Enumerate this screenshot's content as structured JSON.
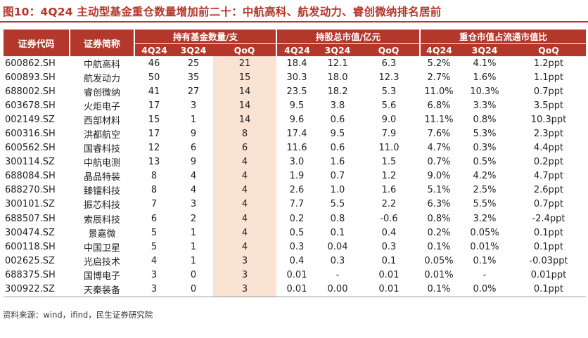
{
  "title": "图10：4Q24 主动型基金重仓数量增加前二十：中航高科、航发动力、睿创微纳排名居前",
  "source": "资料来源：wind，ifind，民生证券研究院",
  "colors": {
    "header_bg": "#b3372a",
    "highlight_bg": "#fbe3d3",
    "title_color": "#b3372a"
  },
  "header": {
    "code": "证券代码",
    "name": "证券简称",
    "group_holders": "持有基金数量/支",
    "group_mktcap": "持股总市值/亿元",
    "group_ratio": "重仓市值占流通市值比",
    "sub": [
      "4Q24",
      "3Q24",
      "QoQ",
      "4Q24",
      "3Q24",
      "QoQ",
      "4Q24",
      "3Q24",
      "QoQ"
    ]
  },
  "rows": [
    [
      "600862.SH",
      "中航高科",
      "46",
      "25",
      "21",
      "18.4",
      "12.1",
      "6.3",
      "5.2%",
      "4.1%",
      "1.2ppt"
    ],
    [
      "600893.SH",
      "航发动力",
      "50",
      "35",
      "15",
      "30.3",
      "18.0",
      "12.3",
      "2.7%",
      "1.6%",
      "1.1ppt"
    ],
    [
      "688002.SH",
      "睿创微纳",
      "41",
      "27",
      "14",
      "23.5",
      "18.2",
      "5.3",
      "11.0%",
      "10.3%",
      "0.7ppt"
    ],
    [
      "603678.SH",
      "火炬电子",
      "17",
      "3",
      "14",
      "9.5",
      "3.8",
      "5.6",
      "6.8%",
      "3.3%",
      "3.5ppt"
    ],
    [
      "002149.SZ",
      "西部材料",
      "15",
      "1",
      "14",
      "9.6",
      "0.6",
      "9.0",
      "11.1%",
      "0.8%",
      "10.3ppt"
    ],
    [
      "600316.SH",
      "洪都航空",
      "17",
      "9",
      "8",
      "17.4",
      "9.5",
      "7.9",
      "7.6%",
      "5.3%",
      "2.3ppt"
    ],
    [
      "600562.SH",
      "国睿科技",
      "12",
      "6",
      "6",
      "11.6",
      "0.6",
      "11.0",
      "4.7%",
      "0.3%",
      "4.4ppt"
    ],
    [
      "300114.SZ",
      "中航电测",
      "13",
      "9",
      "4",
      "3.0",
      "1.6",
      "1.5",
      "0.7%",
      "0.5%",
      "0.2ppt"
    ],
    [
      "688084.SH",
      "晶品特装",
      "8",
      "4",
      "4",
      "1.9",
      "0.7",
      "1.2",
      "9.0%",
      "4.2%",
      "4.7ppt"
    ],
    [
      "688270.SH",
      "臻镭科技",
      "8",
      "4",
      "4",
      "2.6",
      "1.0",
      "1.6",
      "5.1%",
      "2.5%",
      "2.6ppt"
    ],
    [
      "300101.SZ",
      "振芯科技",
      "7",
      "3",
      "4",
      "7.7",
      "5.5",
      "2.2",
      "6.3%",
      "5.5%",
      "0.7ppt"
    ],
    [
      "688507.SH",
      "索辰科技",
      "6",
      "2",
      "4",
      "0.2",
      "0.8",
      "-0.6",
      "0.8%",
      "3.2%",
      "-2.4ppt"
    ],
    [
      "300474.SZ",
      "景嘉微",
      "5",
      "1",
      "4",
      "0.5",
      "0.1",
      "0.4",
      "0.2%",
      "0.05%",
      "0.1ppt"
    ],
    [
      "600118.SH",
      "中国卫星",
      "5",
      "1",
      "4",
      "0.3",
      "0.04",
      "0.3",
      "0.1%",
      "0.01%",
      "0.1ppt"
    ],
    [
      "002625.SZ",
      "光启技术",
      "4",
      "1",
      "3",
      "0.4",
      "0.3",
      "0.1",
      "0.05%",
      "0.1%",
      "-0.03ppt"
    ],
    [
      "688375.SH",
      "国博电子",
      "3",
      "0",
      "3",
      "0.01",
      "-",
      "0.01",
      "0.01%",
      "-",
      "0.01ppt"
    ],
    [
      "300922.SZ",
      "天秦装备",
      "3",
      "0",
      "3",
      "0.01",
      "0.00",
      "0.01",
      "0.1%",
      "0.0%",
      "0.1ppt"
    ]
  ]
}
